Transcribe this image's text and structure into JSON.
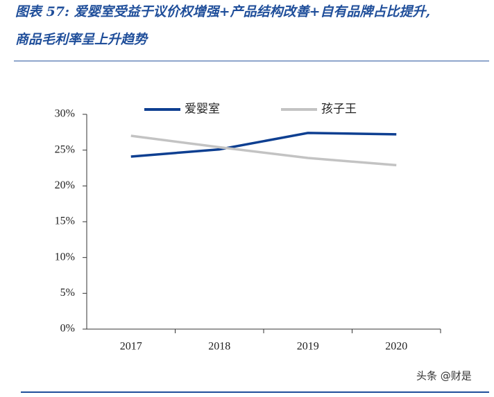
{
  "chart_data": {
    "type": "line",
    "title": [
      "图表 57: 爱婴室受益于议价权增强+产品结构改善+自有品牌占比提升,",
      "商品毛利率呈上升趋势"
    ],
    "categories": [
      "2017",
      "2018",
      "2019",
      "2020"
    ],
    "series": [
      {
        "name": "爱婴室",
        "color": "#0e3f91",
        "values": [
          24.1,
          25.1,
          27.4,
          27.2
        ]
      },
      {
        "name": "孩子王",
        "color": "#c3c3c3",
        "values": [
          27.0,
          25.4,
          23.9,
          22.9
        ]
      }
    ],
    "ylim": [
      0,
      30
    ],
    "yticks": [
      {
        "value": 0,
        "label": "0%"
      },
      {
        "value": 5,
        "label": "5%"
      },
      {
        "value": 10,
        "label": "10%"
      },
      {
        "value": 15,
        "label": "15%"
      },
      {
        "value": 20,
        "label": "20%"
      },
      {
        "value": 25,
        "label": "25%"
      },
      {
        "value": 30,
        "label": "30%"
      }
    ],
    "grid": false,
    "legend": "top",
    "watermark": "头条 @财是"
  }
}
